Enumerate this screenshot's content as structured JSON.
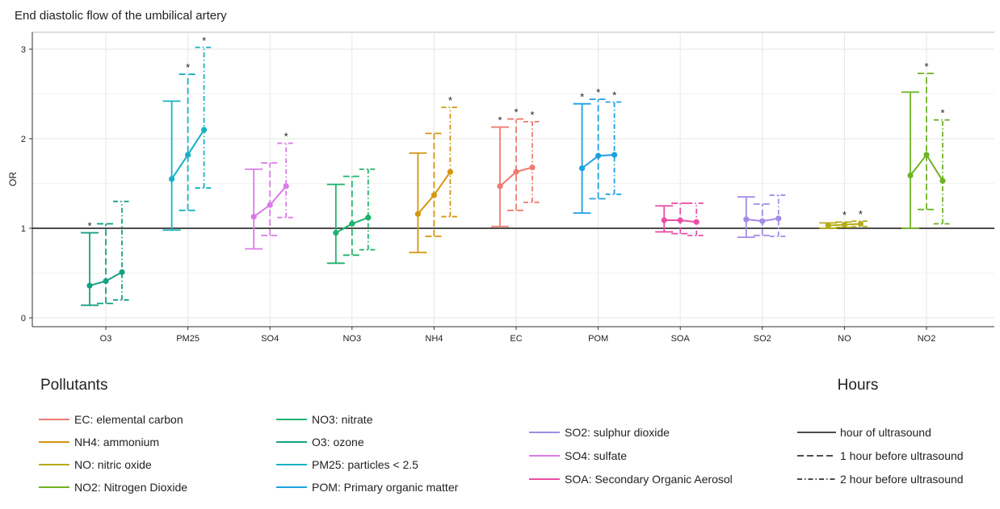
{
  "chart_data": {
    "type": "scatter",
    "title": "End diastolic flow of the umbilical artery",
    "ylabel": "OR",
    "xlabel": "",
    "ylim": [
      0,
      3.2
    ],
    "yticks": [
      0,
      1,
      2,
      3
    ],
    "reference_line": 1,
    "grid": true,
    "categories": [
      "O3",
      "PM25",
      "SO4",
      "NO3",
      "NH4",
      "EC",
      "POM",
      "SOA",
      "SO2",
      "NO",
      "NO2"
    ],
    "hours_labels": [
      "hour of ultrasound",
      "1 hour before ultrasound",
      "2 hour before ultrasound"
    ],
    "estimates": [
      {
        "category": "O3",
        "color": "#16a085",
        "points": [
          {
            "or": 0.36,
            "lo": 0.14,
            "hi": 0.95,
            "sig": true
          },
          {
            "or": 0.41,
            "lo": 0.16,
            "hi": 1.05,
            "sig": false
          },
          {
            "or": 0.51,
            "lo": 0.2,
            "hi": 1.3,
            "sig": false
          }
        ]
      },
      {
        "category": "PM25",
        "color": "#17b1c4",
        "points": [
          {
            "or": 1.55,
            "lo": 0.98,
            "hi": 2.42,
            "sig": false
          },
          {
            "or": 1.82,
            "lo": 1.2,
            "hi": 2.72,
            "sig": true
          },
          {
            "or": 2.1,
            "lo": 1.45,
            "hi": 3.02,
            "sig": true
          }
        ]
      },
      {
        "category": "SO4",
        "color": "#d97ce6",
        "points": [
          {
            "or": 1.13,
            "lo": 0.77,
            "hi": 1.66,
            "sig": false
          },
          {
            "or": 1.26,
            "lo": 0.92,
            "hi": 1.73,
            "sig": false
          },
          {
            "or": 1.47,
            "lo": 1.12,
            "hi": 1.95,
            "sig": true
          }
        ]
      },
      {
        "category": "NO3",
        "color": "#1fb36b",
        "points": [
          {
            "or": 0.95,
            "lo": 0.61,
            "hi": 1.49,
            "sig": false
          },
          {
            "or": 1.05,
            "lo": 0.7,
            "hi": 1.58,
            "sig": false
          },
          {
            "or": 1.12,
            "lo": 0.76,
            "hi": 1.66,
            "sig": false
          }
        ]
      },
      {
        "category": "NH4",
        "color": "#d4950f",
        "points": [
          {
            "or": 1.16,
            "lo": 0.73,
            "hi": 1.84,
            "sig": false
          },
          {
            "or": 1.37,
            "lo": 0.91,
            "hi": 2.06,
            "sig": false
          },
          {
            "or": 1.63,
            "lo": 1.13,
            "hi": 2.35,
            "sig": true
          }
        ]
      },
      {
        "category": "EC",
        "color": "#ee7a72",
        "points": [
          {
            "or": 1.47,
            "lo": 1.02,
            "hi": 2.13,
            "sig": true
          },
          {
            "or": 1.63,
            "lo": 1.2,
            "hi": 2.22,
            "sig": true
          },
          {
            "or": 1.68,
            "lo": 1.29,
            "hi": 2.19,
            "sig": true
          }
        ]
      },
      {
        "category": "POM",
        "color": "#1ea0e0",
        "points": [
          {
            "or": 1.67,
            "lo": 1.17,
            "hi": 2.39,
            "sig": true
          },
          {
            "or": 1.81,
            "lo": 1.33,
            "hi": 2.44,
            "sig": true
          },
          {
            "or": 1.82,
            "lo": 1.38,
            "hi": 2.41,
            "sig": true
          }
        ]
      },
      {
        "category": "SOA",
        "color": "#ea4fa6",
        "points": [
          {
            "or": 1.09,
            "lo": 0.96,
            "hi": 1.25,
            "sig": false
          },
          {
            "or": 1.09,
            "lo": 0.94,
            "hi": 1.28,
            "sig": false
          },
          {
            "or": 1.07,
            "lo": 0.92,
            "hi": 1.28,
            "sig": false
          }
        ]
      },
      {
        "category": "SO2",
        "color": "#a38be6",
        "points": [
          {
            "or": 1.1,
            "lo": 0.9,
            "hi": 1.35,
            "sig": false
          },
          {
            "or": 1.08,
            "lo": 0.92,
            "hi": 1.27,
            "sig": false
          },
          {
            "or": 1.11,
            "lo": 0.91,
            "hi": 1.37,
            "sig": false
          }
        ]
      },
      {
        "category": "NO",
        "color": "#b5ac14",
        "points": [
          {
            "or": 1.03,
            "lo": 1.0,
            "hi": 1.06,
            "sig": false
          },
          {
            "or": 1.04,
            "lo": 1.01,
            "hi": 1.07,
            "sig": true
          },
          {
            "or": 1.05,
            "lo": 1.02,
            "hi": 1.08,
            "sig": true
          }
        ]
      },
      {
        "category": "NO2",
        "color": "#6eb324",
        "points": [
          {
            "or": 1.59,
            "lo": 1.0,
            "hi": 2.52,
            "sig": false
          },
          {
            "or": 1.82,
            "lo": 1.21,
            "hi": 2.73,
            "sig": true
          },
          {
            "or": 1.53,
            "lo": 1.05,
            "hi": 2.21,
            "sig": true
          }
        ]
      }
    ],
    "legend": {
      "pollutants_title": "Pollutants",
      "hours_title": "Hours",
      "pollutants": [
        {
          "label": "EC: elemental carbon",
          "color": "#ee7a72"
        },
        {
          "label": "NH4: ammonium",
          "color": "#d4950f"
        },
        {
          "label": "NO: nitric oxide",
          "color": "#b5ac14"
        },
        {
          "label": "NO2: Nitrogen Dioxide",
          "color": "#6eb324"
        },
        {
          "label": "NO3: nitrate",
          "color": "#1fb36b"
        },
        {
          "label": "O3: ozone",
          "color": "#16a085"
        },
        {
          "label": "PM25: particles < 2.5",
          "color": "#17b1c4"
        },
        {
          "label": "POM: Primary organic matter",
          "color": "#1ea0e0"
        },
        {
          "label": "SO2: sulphur dioxide",
          "color": "#a38be6"
        },
        {
          "label": "SO4: sulfate",
          "color": "#d97ce6"
        },
        {
          "label": "SOA: Secondary Organic Aerosol",
          "color": "#ea4fa6"
        }
      ],
      "hours": [
        {
          "label": "hour of ultrasound",
          "dash": "solid"
        },
        {
          "label": "1 hour before ultrasound",
          "dash": "dashed"
        },
        {
          "label": "2 hour before ultrasound",
          "dash": "dotdash"
        }
      ]
    }
  }
}
